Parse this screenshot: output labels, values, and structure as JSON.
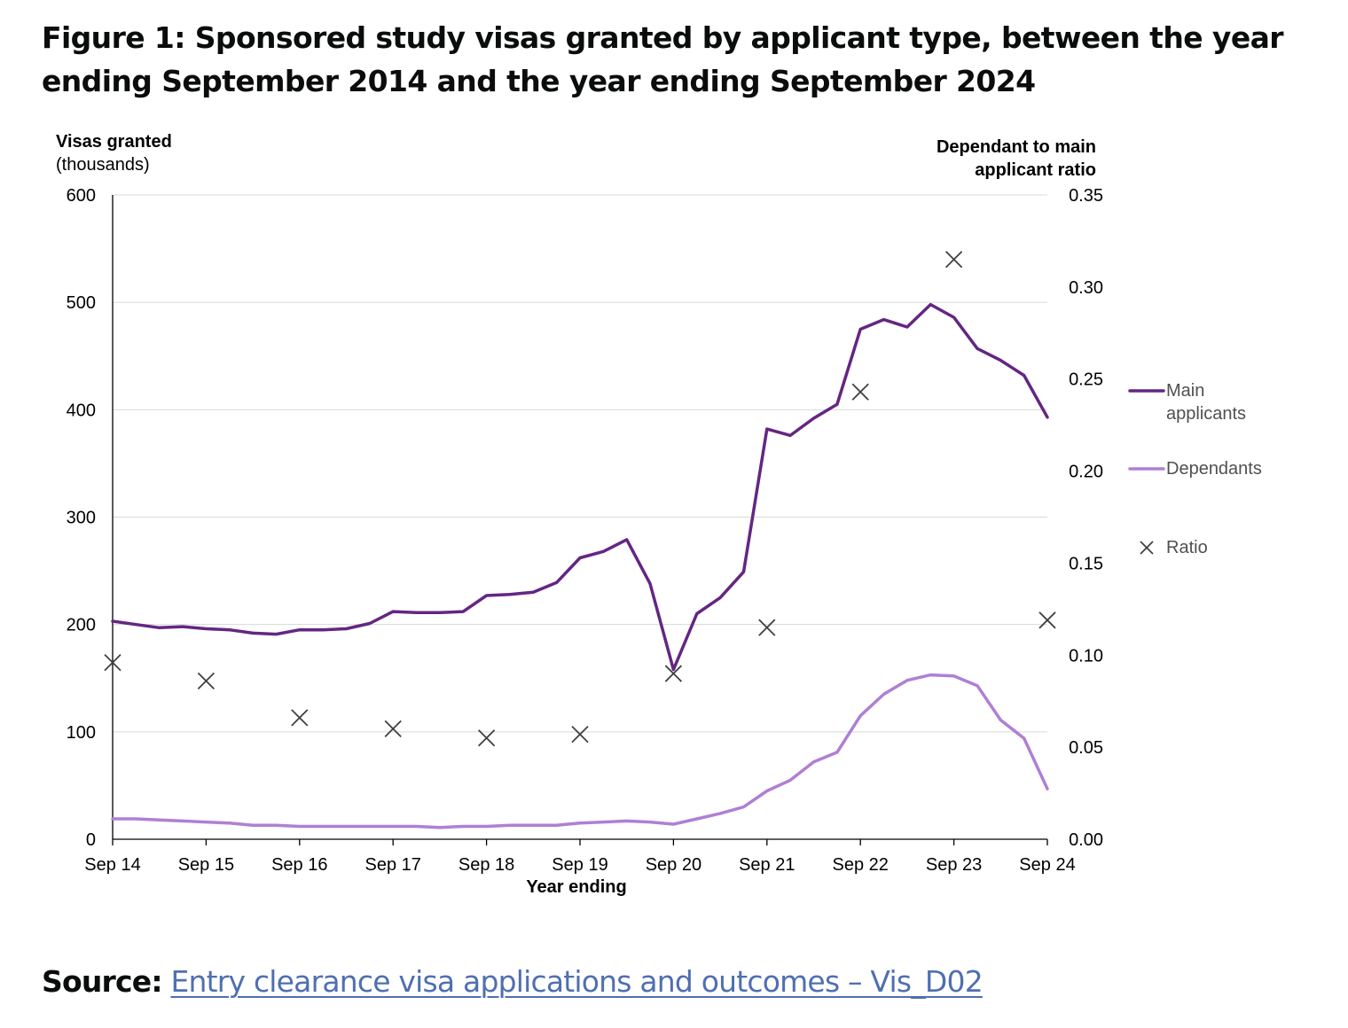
{
  "figure": {
    "title": "Figure 1: Sponsored study visas granted by applicant type, between the year ending September 2014 and the year ending September 2024"
  },
  "source": {
    "label": "Source:",
    "link_text": "Entry clearance visa applications and outcomes – Vis_D02"
  },
  "colors": {
    "main_applicants": "#642682",
    "dependants": "#b07fd3",
    "ratio": "#404040",
    "gridline": "#d9d9d9",
    "axis": "#000000",
    "link": "#4f6fb0"
  },
  "chart_data": {
    "type": "line",
    "title": "Figure 1: Sponsored study visas granted by applicant type, between the year ending September 2014 and the year ending September 2024",
    "xlabel": "Year ending",
    "ylabel": "Visas granted",
    "ylabel_sub": "(thousands)",
    "y2label_line1": "Dependant to main",
    "y2label_line2": "applicant ratio",
    "ylim": [
      0,
      600
    ],
    "y2lim": [
      0,
      0.35
    ],
    "yticks": [
      "0",
      "100",
      "200",
      "300",
      "400",
      "500",
      "600"
    ],
    "y2ticks": [
      "0.00",
      "0.05",
      "0.10",
      "0.15",
      "0.20",
      "0.25",
      "0.30",
      "0.35"
    ],
    "xtick_labels": [
      "Sep 14",
      "Sep 15",
      "Sep 16",
      "Sep 17",
      "Sep 18",
      "Sep 19",
      "Sep 20",
      "Sep 21",
      "Sep 22",
      "Sep 23",
      "Sep 24"
    ],
    "grid": true,
    "legend_position": "right",
    "x_quarters": [
      "Sep 14",
      "Dec 14",
      "Mar 15",
      "Jun 15",
      "Sep 15",
      "Dec 15",
      "Mar 16",
      "Jun 16",
      "Sep 16",
      "Dec 16",
      "Mar 17",
      "Jun 17",
      "Sep 17",
      "Dec 17",
      "Mar 18",
      "Jun 18",
      "Sep 18",
      "Dec 18",
      "Mar 19",
      "Jun 19",
      "Sep 19",
      "Dec 19",
      "Mar 20",
      "Jun 20",
      "Sep 20",
      "Dec 20",
      "Mar 21",
      "Jun 21",
      "Sep 21",
      "Dec 21",
      "Mar 22",
      "Jun 22",
      "Sep 22",
      "Dec 22",
      "Mar 23",
      "Jun 23",
      "Sep 23",
      "Dec 23",
      "Mar 24",
      "Jun 24",
      "Sep 24"
    ],
    "series": [
      {
        "name": "Main applicants",
        "legend_line1": "Main",
        "legend_line2": "applicants",
        "kind": "line",
        "axis": "left",
        "values": [
          203,
          200,
          197,
          198,
          196,
          195,
          192,
          191,
          195,
          195,
          196,
          201,
          212,
          211,
          211,
          212,
          227,
          228,
          230,
          239,
          262,
          268,
          279,
          238,
          158,
          210,
          225,
          249,
          382,
          376,
          392,
          405,
          475,
          484,
          477,
          498,
          486,
          457,
          446,
          432,
          393
        ]
      },
      {
        "name": "Dependants",
        "legend_line1": "Dependants",
        "kind": "line",
        "axis": "left",
        "values": [
          19,
          19,
          18,
          17,
          16,
          15,
          13,
          13,
          12,
          12,
          12,
          12,
          12,
          12,
          11,
          12,
          12,
          13,
          13,
          13,
          15,
          16,
          17,
          16,
          14,
          19,
          24,
          30,
          45,
          55,
          72,
          81,
          115,
          135,
          148,
          153,
          152,
          143,
          111,
          94,
          47
        ]
      },
      {
        "name": "Ratio",
        "legend_line1": "Ratio",
        "kind": "scatter",
        "axis": "right",
        "x_labels": [
          "Sep 14",
          "Sep 15",
          "Sep 16",
          "Sep 17",
          "Sep 18",
          "Sep 19",
          "Sep 20",
          "Sep 21",
          "Sep 22",
          "Sep 23",
          "Sep 24"
        ],
        "values": [
          0.096,
          0.086,
          0.066,
          0.06,
          0.055,
          0.057,
          0.09,
          0.115,
          0.243,
          0.315,
          0.119
        ]
      }
    ]
  }
}
